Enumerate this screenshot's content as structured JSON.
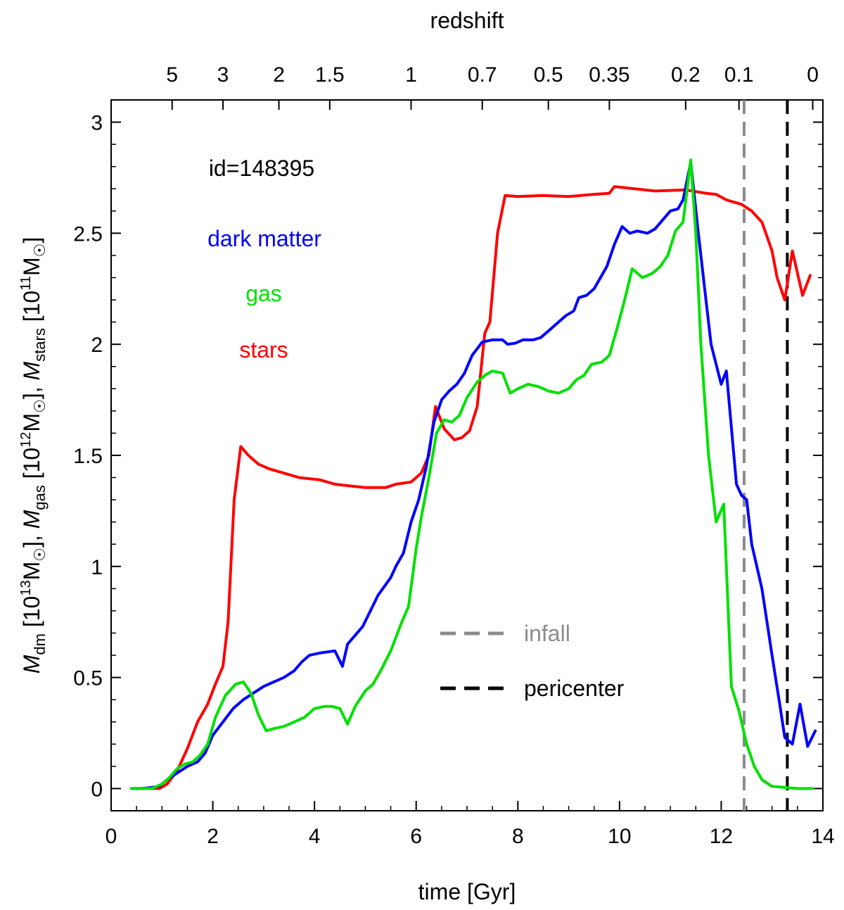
{
  "chart_data": {
    "type": "line",
    "title": "",
    "xlabel": "time [Gyr]",
    "ylabel_parts": {
      "dm_sym": "M",
      "dm_sub": "dm",
      "dm_unit_a": " [10",
      "dm_exp": "13",
      "dm_unit_b": "M",
      "dm_sun": "☉",
      "dm_close": "],",
      "gas_sym": "M",
      "gas_sub": "gas",
      "gas_unit_a": " [10",
      "gas_exp": "12",
      "gas_unit_b": "M",
      "gas_sun": "☉",
      "gas_close": "],",
      "stars_sym": "M",
      "stars_sub": "stars",
      "stars_unit_a": " [10",
      "stars_exp": "11",
      "stars_unit_b": "M",
      "stars_sun": "☉",
      "stars_close": "]"
    },
    "top_axis_label": "redshift",
    "xlim": [
      0,
      14
    ],
    "ylim": [
      -0.1,
      3.1
    ],
    "x_ticks": [
      "0",
      "2",
      "4",
      "6",
      "8",
      "10",
      "12",
      "14"
    ],
    "x_tick_values": [
      0,
      2,
      4,
      6,
      8,
      10,
      12,
      14
    ],
    "y_ticks": [
      "0",
      "0.5",
      "1",
      "1.5",
      "2",
      "2.5",
      "3"
    ],
    "y_tick_values": [
      0,
      0.5,
      1,
      1.5,
      2,
      2.5,
      3
    ],
    "top_ticks": [
      {
        "label": "5",
        "t": 1.2
      },
      {
        "label": "3",
        "t": 2.2
      },
      {
        "label": "2",
        "t": 3.3
      },
      {
        "label": "1.5",
        "t": 4.3
      },
      {
        "label": "1",
        "t": 5.9
      },
      {
        "label": "0.7",
        "t": 7.3
      },
      {
        "label": "0.5",
        "t": 8.6
      },
      {
        "label": "0.35",
        "t": 9.8
      },
      {
        "label": "0.2",
        "t": 11.3
      },
      {
        "label": "0.1",
        "t": 12.35
      },
      {
        "label": "0",
        "t": 13.8
      }
    ],
    "annotations": {
      "id": "id=148395",
      "dark_matter": "dark matter",
      "gas": "gas",
      "stars": "stars",
      "infall": "infall",
      "pericenter": "pericenter"
    },
    "vlines": [
      {
        "name": "infall",
        "x": 12.45,
        "color": "#8c8c8c"
      },
      {
        "name": "pericenter",
        "x": 13.3,
        "color": "#000000"
      }
    ],
    "series": [
      {
        "name": "stars",
        "color": "#ff0000",
        "points": [
          [
            0.4,
            0
          ],
          [
            0.6,
            0
          ],
          [
            0.8,
            0
          ],
          [
            0.95,
            0
          ],
          [
            1.1,
            0.02
          ],
          [
            1.3,
            0.08
          ],
          [
            1.5,
            0.18
          ],
          [
            1.7,
            0.3
          ],
          [
            1.9,
            0.38
          ],
          [
            2.05,
            0.47
          ],
          [
            2.2,
            0.55
          ],
          [
            2.3,
            0.75
          ],
          [
            2.42,
            1.3
          ],
          [
            2.55,
            1.54
          ],
          [
            2.7,
            1.5
          ],
          [
            2.9,
            1.46
          ],
          [
            3.1,
            1.44
          ],
          [
            3.4,
            1.42
          ],
          [
            3.7,
            1.4
          ],
          [
            4.1,
            1.39
          ],
          [
            4.4,
            1.37
          ],
          [
            4.8,
            1.36
          ],
          [
            5.0,
            1.355
          ],
          [
            5.4,
            1.355
          ],
          [
            5.6,
            1.37
          ],
          [
            5.9,
            1.38
          ],
          [
            6.1,
            1.42
          ],
          [
            6.25,
            1.5
          ],
          [
            6.38,
            1.72
          ],
          [
            6.55,
            1.62
          ],
          [
            6.75,
            1.57
          ],
          [
            6.9,
            1.58
          ],
          [
            7.05,
            1.61
          ],
          [
            7.2,
            1.72
          ],
          [
            7.35,
            2.05
          ],
          [
            7.45,
            2.1
          ],
          [
            7.6,
            2.5
          ],
          [
            7.75,
            2.67
          ],
          [
            8.0,
            2.665
          ],
          [
            8.5,
            2.67
          ],
          [
            9.0,
            2.665
          ],
          [
            9.5,
            2.675
          ],
          [
            9.8,
            2.68
          ],
          [
            9.9,
            2.71
          ],
          [
            10.3,
            2.7
          ],
          [
            10.7,
            2.69
          ],
          [
            11.3,
            2.695
          ],
          [
            11.7,
            2.68
          ],
          [
            11.9,
            2.675
          ],
          [
            12.1,
            2.65
          ],
          [
            12.4,
            2.63
          ],
          [
            12.6,
            2.6
          ],
          [
            12.8,
            2.55
          ],
          [
            13.0,
            2.42
          ],
          [
            13.1,
            2.3
          ],
          [
            13.25,
            2.2
          ],
          [
            13.4,
            2.42
          ],
          [
            13.6,
            2.22
          ],
          [
            13.75,
            2.31
          ]
        ]
      },
      {
        "name": "dark matter",
        "color": "#0000ff",
        "points": [
          [
            0.4,
            0
          ],
          [
            0.6,
            0
          ],
          [
            0.8,
            0.005
          ],
          [
            0.95,
            0.01
          ],
          [
            1.1,
            0.04
          ],
          [
            1.3,
            0.07
          ],
          [
            1.5,
            0.1
          ],
          [
            1.7,
            0.12
          ],
          [
            1.85,
            0.16
          ],
          [
            2.0,
            0.24
          ],
          [
            2.2,
            0.3
          ],
          [
            2.4,
            0.36
          ],
          [
            2.6,
            0.4
          ],
          [
            2.8,
            0.43
          ],
          [
            3.0,
            0.46
          ],
          [
            3.2,
            0.48
          ],
          [
            3.4,
            0.5
          ],
          [
            3.6,
            0.53
          ],
          [
            3.75,
            0.57
          ],
          [
            3.9,
            0.6
          ],
          [
            4.1,
            0.61
          ],
          [
            4.4,
            0.62
          ],
          [
            4.55,
            0.55
          ],
          [
            4.65,
            0.65
          ],
          [
            4.8,
            0.69
          ],
          [
            4.95,
            0.73
          ],
          [
            5.1,
            0.8
          ],
          [
            5.25,
            0.87
          ],
          [
            5.5,
            0.95
          ],
          [
            5.6,
            1.0
          ],
          [
            5.75,
            1.06
          ],
          [
            5.9,
            1.2
          ],
          [
            6.05,
            1.3
          ],
          [
            6.2,
            1.45
          ],
          [
            6.35,
            1.65
          ],
          [
            6.5,
            1.75
          ],
          [
            6.65,
            1.79
          ],
          [
            6.8,
            1.82
          ],
          [
            6.95,
            1.87
          ],
          [
            7.1,
            1.95
          ],
          [
            7.3,
            2.01
          ],
          [
            7.5,
            2.02
          ],
          [
            7.7,
            2.02
          ],
          [
            7.8,
            2.0
          ],
          [
            7.95,
            2.005
          ],
          [
            8.1,
            2.02
          ],
          [
            8.3,
            2.02
          ],
          [
            8.45,
            2.03
          ],
          [
            8.6,
            2.06
          ],
          [
            8.8,
            2.1
          ],
          [
            8.95,
            2.13
          ],
          [
            9.1,
            2.15
          ],
          [
            9.2,
            2.21
          ],
          [
            9.35,
            2.22
          ],
          [
            9.5,
            2.25
          ],
          [
            9.6,
            2.29
          ],
          [
            9.75,
            2.35
          ],
          [
            9.9,
            2.45
          ],
          [
            10.05,
            2.53
          ],
          [
            10.2,
            2.5
          ],
          [
            10.35,
            2.51
          ],
          [
            10.55,
            2.5
          ],
          [
            10.7,
            2.52
          ],
          [
            10.85,
            2.56
          ],
          [
            11.0,
            2.6
          ],
          [
            11.15,
            2.61
          ],
          [
            11.25,
            2.65
          ],
          [
            11.4,
            2.82
          ],
          [
            11.55,
            2.5
          ],
          [
            11.65,
            2.3
          ],
          [
            11.8,
            2.0
          ],
          [
            12.0,
            1.82
          ],
          [
            12.1,
            1.88
          ],
          [
            12.3,
            1.37
          ],
          [
            12.4,
            1.32
          ],
          [
            12.5,
            1.3
          ],
          [
            12.6,
            1.1
          ],
          [
            12.8,
            0.9
          ],
          [
            13.0,
            0.6
          ],
          [
            13.15,
            0.38
          ],
          [
            13.25,
            0.23
          ],
          [
            13.4,
            0.2
          ],
          [
            13.55,
            0.38
          ],
          [
            13.7,
            0.19
          ],
          [
            13.85,
            0.26
          ]
        ]
      },
      {
        "name": "gas",
        "color": "#00e100",
        "points": [
          [
            0.4,
            0
          ],
          [
            0.6,
            0
          ],
          [
            0.8,
            0
          ],
          [
            1.0,
            0.02
          ],
          [
            1.15,
            0.05
          ],
          [
            1.3,
            0.09
          ],
          [
            1.45,
            0.11
          ],
          [
            1.6,
            0.12
          ],
          [
            1.75,
            0.15
          ],
          [
            1.9,
            0.2
          ],
          [
            2.05,
            0.32
          ],
          [
            2.25,
            0.42
          ],
          [
            2.45,
            0.47
          ],
          [
            2.6,
            0.48
          ],
          [
            2.75,
            0.43
          ],
          [
            2.9,
            0.33
          ],
          [
            3.05,
            0.26
          ],
          [
            3.2,
            0.27
          ],
          [
            3.4,
            0.28
          ],
          [
            3.6,
            0.3
          ],
          [
            3.8,
            0.32
          ],
          [
            4.0,
            0.36
          ],
          [
            4.2,
            0.37
          ],
          [
            4.35,
            0.37
          ],
          [
            4.5,
            0.36
          ],
          [
            4.65,
            0.29
          ],
          [
            4.8,
            0.37
          ],
          [
            5.0,
            0.44
          ],
          [
            5.15,
            0.47
          ],
          [
            5.3,
            0.53
          ],
          [
            5.5,
            0.62
          ],
          [
            5.7,
            0.74
          ],
          [
            5.85,
            0.82
          ],
          [
            6.0,
            1.08
          ],
          [
            6.1,
            1.22
          ],
          [
            6.25,
            1.4
          ],
          [
            6.4,
            1.6
          ],
          [
            6.55,
            1.66
          ],
          [
            6.7,
            1.65
          ],
          [
            6.85,
            1.68
          ],
          [
            7.0,
            1.76
          ],
          [
            7.2,
            1.83
          ],
          [
            7.35,
            1.86
          ],
          [
            7.5,
            1.88
          ],
          [
            7.7,
            1.87
          ],
          [
            7.85,
            1.78
          ],
          [
            8.0,
            1.8
          ],
          [
            8.2,
            1.82
          ],
          [
            8.4,
            1.81
          ],
          [
            8.6,
            1.79
          ],
          [
            8.8,
            1.78
          ],
          [
            9.0,
            1.8
          ],
          [
            9.15,
            1.84
          ],
          [
            9.3,
            1.86
          ],
          [
            9.45,
            1.91
          ],
          [
            9.65,
            1.92
          ],
          [
            9.8,
            1.95
          ],
          [
            9.95,
            2.07
          ],
          [
            10.1,
            2.2
          ],
          [
            10.25,
            2.34
          ],
          [
            10.45,
            2.3
          ],
          [
            10.65,
            2.32
          ],
          [
            10.8,
            2.35
          ],
          [
            10.95,
            2.4
          ],
          [
            11.1,
            2.51
          ],
          [
            11.25,
            2.55
          ],
          [
            11.4,
            2.83
          ],
          [
            11.5,
            2.5
          ],
          [
            11.6,
            2.0
          ],
          [
            11.75,
            1.5
          ],
          [
            11.9,
            1.2
          ],
          [
            12.05,
            1.28
          ],
          [
            12.2,
            0.46
          ],
          [
            12.35,
            0.35
          ],
          [
            12.5,
            0.2
          ],
          [
            12.65,
            0.1
          ],
          [
            12.8,
            0.04
          ],
          [
            13.0,
            0.01
          ],
          [
            13.25,
            0.005
          ],
          [
            13.5,
            0
          ],
          [
            13.8,
            0
          ]
        ]
      }
    ]
  }
}
